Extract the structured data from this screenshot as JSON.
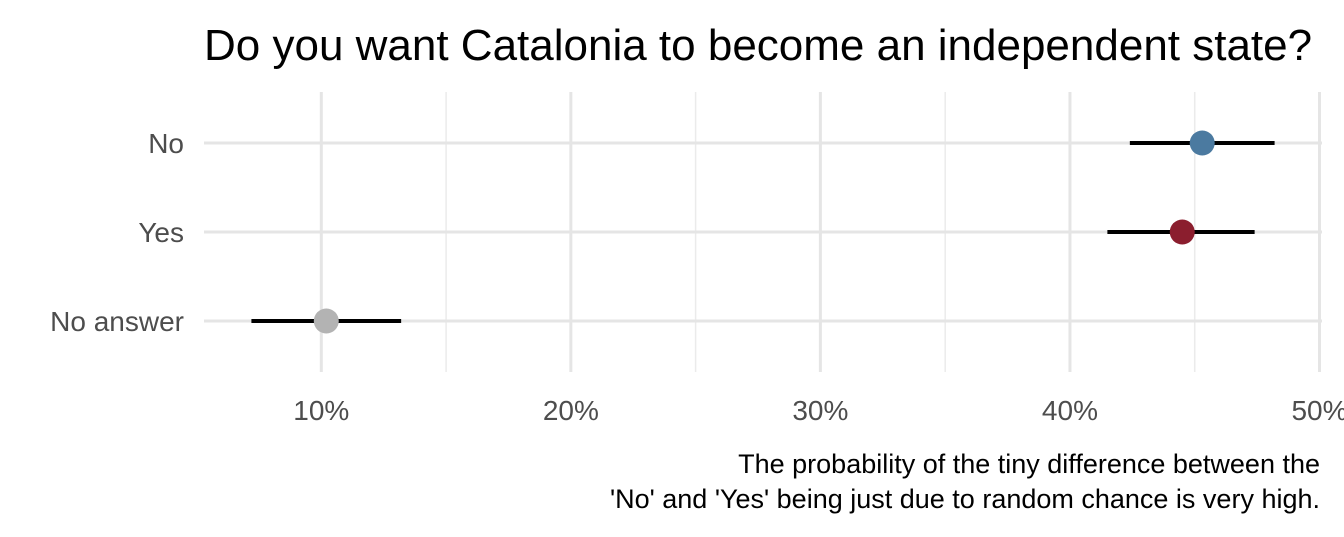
{
  "chart_data": {
    "type": "dot-errorbar",
    "title": "Do you want Catalonia to become an independent state?",
    "caption_lines": [
      "The probability of the tiny difference between the",
      "'No' and 'Yes' being just due to random chance is very high."
    ],
    "xlabel": "",
    "ylabel": "",
    "xlim": [
      5.3,
      50.1
    ],
    "x_ticks": [
      10,
      20,
      30,
      40,
      50
    ],
    "x_tick_labels": [
      "10%",
      "20%",
      "30%",
      "40%",
      "50%"
    ],
    "grid": true,
    "legend": "none",
    "categories": [
      "No",
      "Yes",
      "No answer"
    ],
    "points": [
      {
        "label": "No",
        "value": 45.3,
        "low": 42.4,
        "high": 48.2,
        "color": "#4b7aa0"
      },
      {
        "label": "Yes",
        "value": 44.5,
        "low": 41.5,
        "high": 47.4,
        "color": "#8b1e2e"
      },
      {
        "label": "No answer",
        "value": 10.2,
        "low": 7.2,
        "high": 13.2,
        "color": "#b3b3b3"
      }
    ]
  }
}
